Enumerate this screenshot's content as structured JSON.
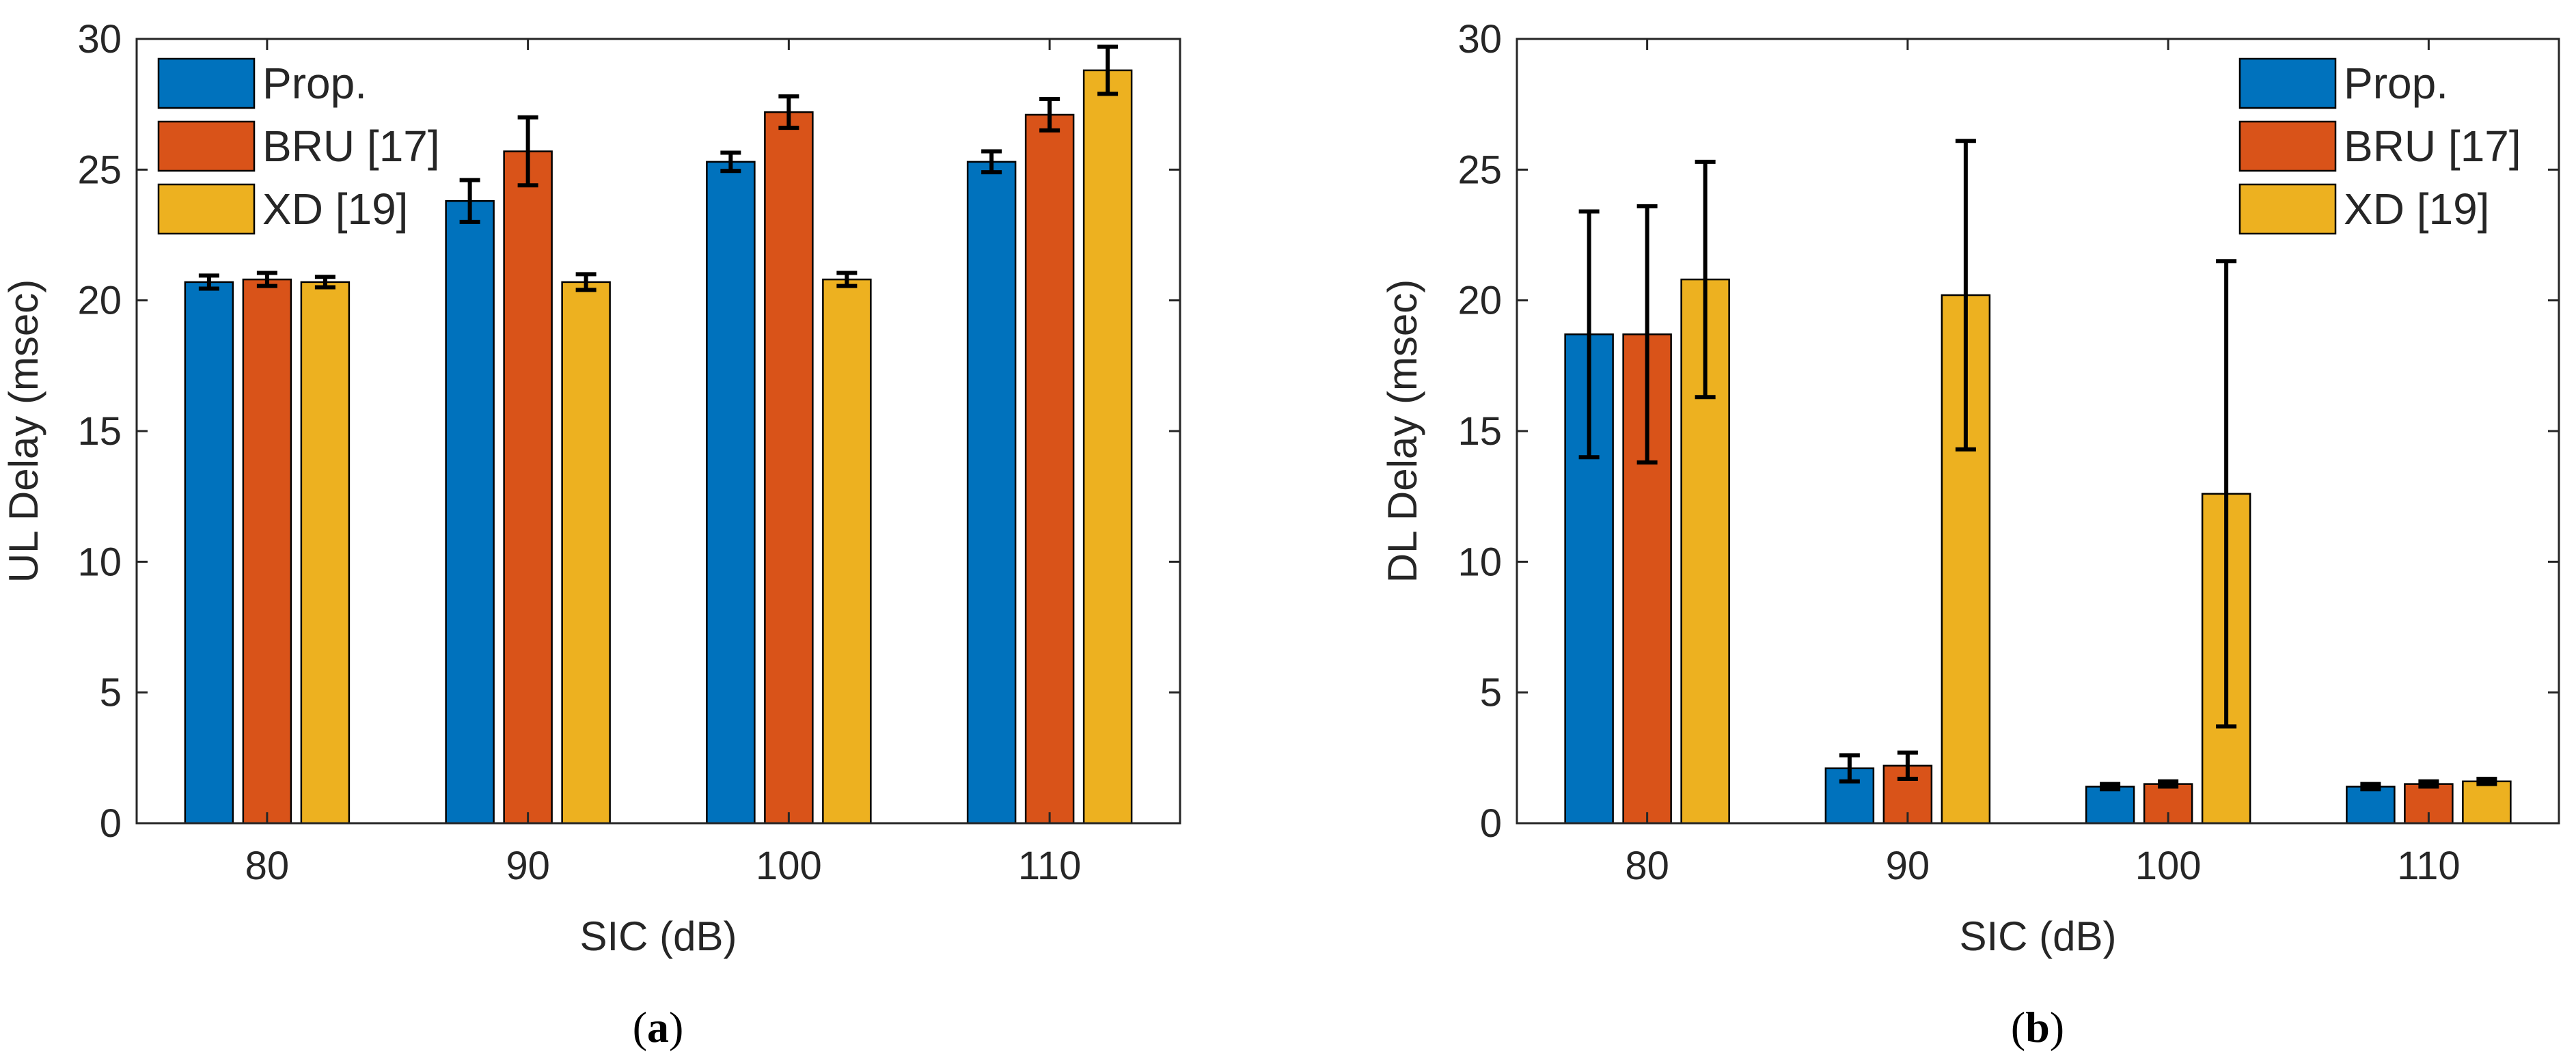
{
  "chart_data": [
    {
      "type": "bar",
      "title": "",
      "xlabel": "SIC (dB)",
      "ylabel": "UL Delay (msec)",
      "ylim": [
        0,
        30
      ],
      "yticks": [
        0,
        5,
        10,
        15,
        20,
        25,
        30
      ],
      "categories": [
        "80",
        "90",
        "100",
        "110"
      ],
      "legend_position": "top-left",
      "series": [
        {
          "name": "Prop.",
          "color": "#0072BD",
          "values": [
            20.7,
            23.8,
            25.3,
            25.3
          ],
          "errors": [
            0.25,
            0.8,
            0.35,
            0.4
          ]
        },
        {
          "name": "BRU [17]",
          "color": "#D95319",
          "values": [
            20.8,
            25.7,
            27.2,
            27.1
          ],
          "errors": [
            0.25,
            1.3,
            0.6,
            0.6
          ]
        },
        {
          "name": "XD [19]",
          "color": "#EDB120",
          "values": [
            20.7,
            20.7,
            20.8,
            28.8
          ],
          "errors": [
            0.2,
            0.3,
            0.25,
            0.9
          ]
        }
      ],
      "caption_letter": "a"
    },
    {
      "type": "bar",
      "title": "",
      "xlabel": "SIC (dB)",
      "ylabel": "DL Delay (msec)",
      "ylim": [
        0,
        30
      ],
      "yticks": [
        0,
        5,
        10,
        15,
        20,
        25,
        30
      ],
      "categories": [
        "80",
        "90",
        "100",
        "110"
      ],
      "legend_position": "top-right",
      "series": [
        {
          "name": "Prop.",
          "color": "#0072BD",
          "values": [
            18.7,
            2.1,
            1.4,
            1.4
          ],
          "errors": [
            4.7,
            0.5,
            0.1,
            0.1
          ]
        },
        {
          "name": "BRU [17]",
          "color": "#D95319",
          "values": [
            18.7,
            2.2,
            1.5,
            1.5
          ],
          "errors": [
            4.9,
            0.5,
            0.1,
            0.1
          ]
        },
        {
          "name": "XD [19]",
          "color": "#EDB120",
          "values": [
            20.8,
            20.2,
            12.6,
            1.6
          ],
          "errors": [
            4.5,
            5.9,
            8.9,
            0.1
          ]
        }
      ],
      "caption_letter": "b"
    }
  ]
}
